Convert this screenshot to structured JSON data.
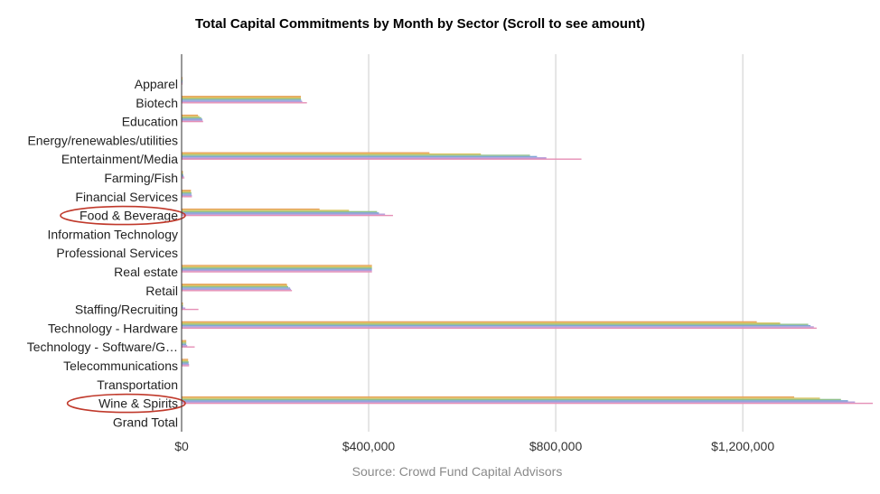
{
  "chart_data": {
    "type": "bar",
    "orientation": "horizontal",
    "title": "Total Capital Commitments by Month by Sector (Scroll to see amount)",
    "source": "Source: Crowd Fund Capital Advisors",
    "categories": [
      "Apparel",
      "Biotech",
      "Education",
      "Energy/renewables/utilities",
      "Entertainment/Media",
      "Farming/Fish",
      "Financial Services",
      "Food & Beverage",
      "Information Technology",
      "Professional Services",
      "Real estate",
      "Retail",
      "Staffing/Recruiting",
      "Technology - Hardware",
      "Technology - Software/G…",
      "Telecommunications",
      "Transportation",
      "Wine & Spirits",
      "Grand Total"
    ],
    "highlighted_categories": [
      "Food & Beverage",
      "Wine & Spirits"
    ],
    "series": [
      {
        "color": "#e8a25b",
        "values": [
          2000,
          255000,
          35000,
          0,
          530000,
          3000,
          20000,
          295000,
          0,
          0,
          407000,
          225000,
          3000,
          1230000,
          10000,
          14000,
          0,
          1310000,
          0
        ]
      },
      {
        "color": "#d9c35c",
        "values": [
          2000,
          255000,
          38000,
          0,
          640000,
          3000,
          20000,
          358000,
          0,
          0,
          407000,
          226000,
          3000,
          1280000,
          10000,
          14000,
          0,
          1365000,
          0
        ]
      },
      {
        "color": "#8fbf8a",
        "values": [
          2000,
          255000,
          42000,
          0,
          745000,
          3000,
          21000,
          418000,
          0,
          0,
          407000,
          228000,
          3000,
          1340000,
          10000,
          15000,
          0,
          1410000,
          0
        ]
      },
      {
        "color": "#7fa7d6",
        "values": [
          2000,
          256000,
          44000,
          0,
          760000,
          4000,
          21000,
          422000,
          0,
          0,
          407000,
          232000,
          3000,
          1345000,
          10000,
          15000,
          0,
          1425000,
          0
        ]
      },
      {
        "color": "#b39ddb",
        "values": [
          2000,
          258000,
          45000,
          0,
          780000,
          5000,
          22000,
          435000,
          0,
          0,
          407000,
          234000,
          8000,
          1352000,
          12000,
          16000,
          0,
          1440000,
          0
        ]
      },
      {
        "color": "#e58fb6",
        "values": [
          2000,
          268000,
          46000,
          0,
          855000,
          6000,
          22000,
          452000,
          0,
          0,
          407000,
          236000,
          36000,
          1358000,
          28000,
          16000,
          0,
          1478000,
          0
        ]
      }
    ],
    "xlim": [
      0,
      1478000
    ],
    "xticks": [
      0,
      400000,
      800000,
      1200000
    ],
    "xtick_labels": [
      "$0",
      "$400,000",
      "$800,000",
      "$1,200,000"
    ],
    "grid": "vertical"
  }
}
